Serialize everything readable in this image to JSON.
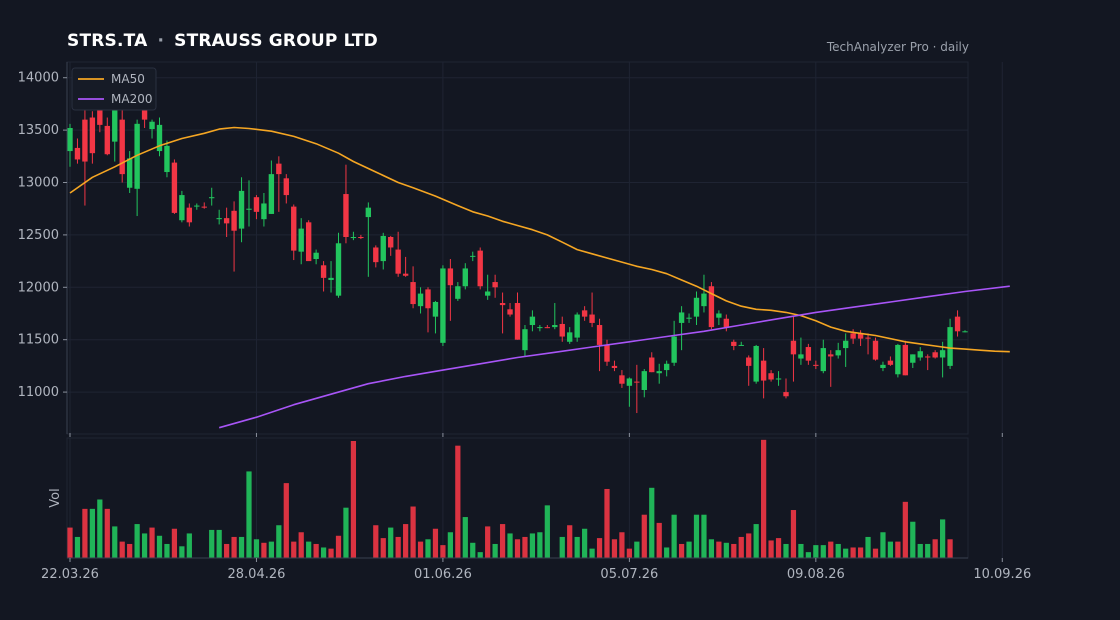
{
  "header": {
    "symbol": "STRS.TA",
    "separator": "·",
    "company": "STRAUSS GROUP LTD",
    "source": "TechAnalyzer Pro · daily"
  },
  "colors": {
    "background": "#131722",
    "up": "#22c55e",
    "down": "#f23645",
    "ma50": "#f5a623",
    "ma200": "#a855f7",
    "grid": "#1f2433",
    "axis": "#3a4050"
  },
  "chart_data": {
    "type": "candlestick",
    "ylim": [
      10600,
      14150
    ],
    "yticks": [
      11000,
      11500,
      12000,
      12500,
      13000,
      13500,
      14000
    ],
    "volume_label": "Vol",
    "x_tick_labels": [
      {
        "label": "22.03.26",
        "index": 0
      },
      {
        "label": "28.04.26",
        "index": 25
      },
      {
        "label": "01.06.26",
        "index": 50
      },
      {
        "label": "05.07.26",
        "index": 75
      },
      {
        "label": "09.08.26",
        "index": 100
      },
      {
        "label": "10.09.26",
        "index": 125
      }
    ],
    "legend": [
      {
        "name": "MA50",
        "color": "#f5a623"
      },
      {
        "name": "MA200",
        "color": "#a855f7"
      }
    ],
    "ohlc": [
      [
        13300,
        13560,
        13150,
        13520
      ],
      [
        13330,
        13420,
        13180,
        13220
      ],
      [
        13600,
        13700,
        12780,
        13200
      ],
      [
        13620,
        13680,
        13180,
        13280
      ],
      [
        13700,
        13720,
        13480,
        13550
      ],
      [
        13540,
        13620,
        13260,
        13270
      ],
      [
        13390,
        13700,
        13200,
        13690
      ],
      [
        13600,
        13700,
        13000,
        13080
      ],
      [
        12950,
        13300,
        12900,
        13230
      ],
      [
        12940,
        13600,
        12680,
        13560
      ],
      [
        13690,
        13850,
        13520,
        13600
      ],
      [
        13510,
        13600,
        13420,
        13580
      ],
      [
        13300,
        13620,
        13250,
        13550
      ],
      [
        13100,
        13400,
        13050,
        13350
      ],
      [
        13190,
        13220,
        12700,
        12710
      ],
      [
        12640,
        12920,
        12620,
        12880
      ],
      [
        12760,
        12800,
        12580,
        12620
      ],
      [
        12770,
        12800,
        12740,
        12780
      ],
      [
        12770,
        12810,
        12750,
        12760
      ],
      [
        12850,
        12950,
        12780,
        12860
      ],
      [
        12650,
        12740,
        12600,
        12660
      ],
      [
        12660,
        12760,
        12480,
        12610
      ],
      [
        12730,
        12820,
        12150,
        12540
      ],
      [
        12560,
        13050,
        12430,
        12920
      ],
      [
        12740,
        13020,
        12580,
        12750
      ],
      [
        12860,
        12880,
        12650,
        12720
      ],
      [
        12650,
        12900,
        12580,
        12800
      ],
      [
        12700,
        13210,
        12700,
        13080
      ],
      [
        13180,
        13250,
        12720,
        13080
      ],
      [
        13040,
        13080,
        12800,
        12880
      ],
      [
        12770,
        12790,
        12260,
        12350
      ],
      [
        12340,
        12660,
        12220,
        12560
      ],
      [
        12620,
        12640,
        12270,
        12250
      ],
      [
        12270,
        12360,
        12220,
        12330
      ],
      [
        12210,
        12250,
        11960,
        12090
      ],
      [
        12070,
        12250,
        11950,
        12090
      ],
      [
        11920,
        12520,
        11900,
        12420
      ],
      [
        12890,
        13170,
        12420,
        12480
      ],
      [
        12470,
        12530,
        12450,
        12480
      ],
      [
        12480,
        12500,
        12460,
        12470
      ],
      [
        12670,
        12810,
        12100,
        12760
      ],
      [
        12380,
        12400,
        12190,
        12240
      ],
      [
        12250,
        12520,
        12170,
        12490
      ],
      [
        12480,
        12490,
        12300,
        12380
      ],
      [
        12360,
        12530,
        12100,
        12130
      ],
      [
        12130,
        12290,
        12100,
        12110
      ],
      [
        12050,
        12200,
        11800,
        11840
      ],
      [
        11820,
        12000,
        11750,
        11940
      ],
      [
        11980,
        12000,
        11570,
        11800
      ],
      [
        11720,
        11870,
        11560,
        11860
      ],
      [
        11470,
        12210,
        11440,
        12180
      ],
      [
        12180,
        12270,
        11680,
        12020
      ],
      [
        11890,
        12050,
        11870,
        12010
      ],
      [
        12010,
        12230,
        11980,
        12180
      ],
      [
        12300,
        12340,
        12250,
        12300
      ],
      [
        12350,
        12380,
        11980,
        12010
      ],
      [
        11920,
        12120,
        11880,
        11960
      ],
      [
        12050,
        12120,
        11900,
        12000
      ],
      [
        11850,
        11950,
        11560,
        11830
      ],
      [
        11790,
        11850,
        11720,
        11740
      ],
      [
        11850,
        11950,
        11500,
        11500
      ],
      [
        11400,
        11640,
        11340,
        11600
      ],
      [
        11640,
        11780,
        11580,
        11720
      ],
      [
        11620,
        11640,
        11580,
        11620
      ],
      [
        11620,
        11640,
        11610,
        11610
      ],
      [
        11620,
        11850,
        11600,
        11640
      ],
      [
        11650,
        11720,
        11480,
        11530
      ],
      [
        11480,
        11620,
        11460,
        11570
      ],
      [
        11520,
        11760,
        11480,
        11740
      ],
      [
        11780,
        11820,
        11680,
        11720
      ],
      [
        11740,
        11950,
        11620,
        11660
      ],
      [
        11640,
        11700,
        11200,
        11450
      ],
      [
        11450,
        11500,
        11250,
        11290
      ],
      [
        11250,
        11300,
        11200,
        11230
      ],
      [
        11160,
        11210,
        11040,
        11080
      ],
      [
        11060,
        11140,
        10860,
        11130
      ],
      [
        11100,
        11260,
        10800,
        11090
      ],
      [
        11020,
        11220,
        10950,
        11200
      ],
      [
        11330,
        11380,
        11190,
        11190
      ],
      [
        11180,
        11270,
        11080,
        11200
      ],
      [
        11210,
        11300,
        11150,
        11270
      ],
      [
        11280,
        11680,
        11250,
        11530
      ],
      [
        11660,
        11820,
        11400,
        11760
      ],
      [
        11700,
        11750,
        11660,
        11710
      ],
      [
        11720,
        11960,
        11640,
        11900
      ],
      [
        11820,
        12120,
        11760,
        11940
      ],
      [
        12010,
        12050,
        11600,
        11620
      ],
      [
        11710,
        11780,
        11640,
        11750
      ],
      [
        11700,
        11740,
        11580,
        11620
      ],
      [
        11480,
        11500,
        11400,
        11440
      ],
      [
        11450,
        11480,
        11440,
        11450
      ],
      [
        11330,
        11350,
        11060,
        11250
      ],
      [
        11100,
        11450,
        11080,
        11440
      ],
      [
        11300,
        11420,
        10940,
        11110
      ],
      [
        11180,
        11210,
        11100,
        11120
      ],
      [
        11120,
        11200,
        11060,
        11130
      ],
      [
        11000,
        11130,
        10940,
        10960
      ],
      [
        11490,
        11720,
        11100,
        11360
      ],
      [
        11320,
        11520,
        11260,
        11360
      ],
      [
        11430,
        11460,
        11260,
        11300
      ],
      [
        11260,
        11300,
        11220,
        11250
      ],
      [
        11200,
        11500,
        11180,
        11420
      ],
      [
        11360,
        11400,
        11050,
        11340
      ],
      [
        11350,
        11470,
        11320,
        11400
      ],
      [
        11420,
        11560,
        11240,
        11490
      ],
      [
        11560,
        11600,
        11460,
        11510
      ],
      [
        11560,
        11590,
        11440,
        11510
      ],
      [
        11520,
        11560,
        11360,
        11510
      ],
      [
        11490,
        11520,
        11300,
        11310
      ],
      [
        11230,
        11290,
        11200,
        11260
      ],
      [
        11300,
        11340,
        11250,
        11260
      ],
      [
        11170,
        11460,
        11140,
        11450
      ],
      [
        11450,
        11490,
        11160,
        11160
      ],
      [
        11280,
        11360,
        11230,
        11360
      ],
      [
        11330,
        11430,
        11300,
        11390
      ],
      [
        11340,
        11360,
        11210,
        11330
      ],
      [
        11380,
        11400,
        11320,
        11330
      ],
      [
        11330,
        11480,
        11140,
        11400
      ],
      [
        11250,
        11700,
        11220,
        11620
      ],
      [
        11720,
        11780,
        11530,
        11580
      ],
      [
        11580,
        11590,
        11570,
        11580
      ]
    ],
    "volume": [
      [
        0.26,
        "down"
      ],
      [
        0.18,
        "up"
      ],
      [
        0.42,
        "down"
      ],
      [
        0.42,
        "up"
      ],
      [
        0.5,
        "up"
      ],
      [
        0.42,
        "down"
      ],
      [
        0.27,
        "up"
      ],
      [
        0.14,
        "down"
      ],
      [
        0.12,
        "down"
      ],
      [
        0.29,
        "up"
      ],
      [
        0.21,
        "up"
      ],
      [
        0.26,
        "down"
      ],
      [
        0.19,
        "up"
      ],
      [
        0.12,
        "up"
      ],
      [
        0.25,
        "down"
      ],
      [
        0.1,
        "up"
      ],
      [
        0.21,
        "up"
      ],
      [
        0.0,
        "up"
      ],
      [
        0.0,
        "up"
      ],
      [
        0.24,
        "up"
      ],
      [
        0.24,
        "up"
      ],
      [
        0.12,
        "down"
      ],
      [
        0.18,
        "down"
      ],
      [
        0.18,
        "up"
      ],
      [
        0.74,
        "up"
      ],
      [
        0.16,
        "up"
      ],
      [
        0.13,
        "down"
      ],
      [
        0.14,
        "up"
      ],
      [
        0.28,
        "up"
      ],
      [
        0.64,
        "down"
      ],
      [
        0.14,
        "down"
      ],
      [
        0.22,
        "down"
      ],
      [
        0.14,
        "up"
      ],
      [
        0.12,
        "down"
      ],
      [
        0.09,
        "up"
      ],
      [
        0.08,
        "down"
      ],
      [
        0.19,
        "down"
      ],
      [
        0.43,
        "up"
      ],
      [
        1.0,
        "down"
      ],
      [
        0.0,
        "up"
      ],
      [
        0.0,
        "up"
      ],
      [
        0.28,
        "down"
      ],
      [
        0.17,
        "down"
      ],
      [
        0.26,
        "up"
      ],
      [
        0.18,
        "down"
      ],
      [
        0.29,
        "down"
      ],
      [
        0.44,
        "down"
      ],
      [
        0.14,
        "down"
      ],
      [
        0.16,
        "up"
      ],
      [
        0.25,
        "down"
      ],
      [
        0.11,
        "down"
      ],
      [
        0.22,
        "up"
      ],
      [
        0.96,
        "down"
      ],
      [
        0.35,
        "up"
      ],
      [
        0.13,
        "up"
      ],
      [
        0.05,
        "up"
      ],
      [
        0.27,
        "down"
      ],
      [
        0.12,
        "up"
      ],
      [
        0.29,
        "down"
      ],
      [
        0.21,
        "up"
      ],
      [
        0.16,
        "down"
      ],
      [
        0.18,
        "down"
      ],
      [
        0.21,
        "up"
      ],
      [
        0.22,
        "up"
      ],
      [
        0.45,
        "up"
      ],
      [
        0.0,
        "up"
      ],
      [
        0.18,
        "up"
      ],
      [
        0.28,
        "down"
      ],
      [
        0.18,
        "up"
      ],
      [
        0.25,
        "up"
      ],
      [
        0.08,
        "up"
      ],
      [
        0.17,
        "down"
      ],
      [
        0.59,
        "down"
      ],
      [
        0.16,
        "down"
      ],
      [
        0.22,
        "down"
      ],
      [
        0.08,
        "down"
      ],
      [
        0.14,
        "up"
      ],
      [
        0.37,
        "down"
      ],
      [
        0.6,
        "up"
      ],
      [
        0.3,
        "down"
      ],
      [
        0.09,
        "up"
      ],
      [
        0.37,
        "up"
      ],
      [
        0.12,
        "down"
      ],
      [
        0.14,
        "up"
      ],
      [
        0.37,
        "up"
      ],
      [
        0.37,
        "up"
      ],
      [
        0.16,
        "up"
      ],
      [
        0.14,
        "down"
      ],
      [
        0.13,
        "up"
      ],
      [
        0.12,
        "down"
      ],
      [
        0.18,
        "down"
      ],
      [
        0.21,
        "down"
      ],
      [
        0.29,
        "up"
      ],
      [
        1.01,
        "down"
      ],
      [
        0.15,
        "down"
      ],
      [
        0.17,
        "down"
      ],
      [
        0.12,
        "up"
      ],
      [
        0.41,
        "down"
      ],
      [
        0.12,
        "up"
      ],
      [
        0.05,
        "up"
      ],
      [
        0.11,
        "up"
      ],
      [
        0.11,
        "up"
      ],
      [
        0.14,
        "down"
      ],
      [
        0.12,
        "up"
      ],
      [
        0.08,
        "up"
      ],
      [
        0.09,
        "down"
      ],
      [
        0.09,
        "down"
      ],
      [
        0.18,
        "up"
      ],
      [
        0.08,
        "down"
      ],
      [
        0.22,
        "up"
      ],
      [
        0.14,
        "up"
      ],
      [
        0.14,
        "down"
      ],
      [
        0.48,
        "down"
      ],
      [
        0.31,
        "up"
      ],
      [
        0.12,
        "up"
      ],
      [
        0.12,
        "up"
      ],
      [
        0.16,
        "down"
      ],
      [
        0.33,
        "up"
      ],
      [
        0.16,
        "down"
      ],
      [
        0.0,
        "up"
      ]
    ],
    "ma50": [
      [
        0,
        12900
      ],
      [
        3,
        13050
      ],
      [
        6,
        13150
      ],
      [
        9,
        13260
      ],
      [
        12,
        13350
      ],
      [
        15,
        13420
      ],
      [
        18,
        13470
      ],
      [
        20,
        13510
      ],
      [
        22,
        13525
      ],
      [
        24,
        13515
      ],
      [
        27,
        13490
      ],
      [
        30,
        13440
      ],
      [
        33,
        13370
      ],
      [
        36,
        13280
      ],
      [
        38,
        13200
      ],
      [
        41,
        13100
      ],
      [
        44,
        13000
      ],
      [
        46,
        12950
      ],
      [
        49,
        12870
      ],
      [
        52,
        12780
      ],
      [
        54,
        12720
      ],
      [
        56,
        12680
      ],
      [
        58,
        12630
      ],
      [
        60,
        12590
      ],
      [
        62,
        12550
      ],
      [
        64,
        12500
      ],
      [
        66,
        12430
      ],
      [
        68,
        12360
      ],
      [
        70,
        12320
      ],
      [
        72,
        12280
      ],
      [
        74,
        12240
      ],
      [
        76,
        12200
      ],
      [
        78,
        12170
      ],
      [
        80,
        12130
      ],
      [
        82,
        12070
      ],
      [
        84,
        12010
      ],
      [
        86,
        11940
      ],
      [
        88,
        11870
      ],
      [
        90,
        11820
      ],
      [
        92,
        11790
      ],
      [
        94,
        11780
      ],
      [
        96,
        11760
      ],
      [
        98,
        11730
      ],
      [
        100,
        11680
      ],
      [
        102,
        11620
      ],
      [
        104,
        11580
      ],
      [
        106,
        11560
      ],
      [
        108,
        11540
      ],
      [
        110,
        11510
      ],
      [
        112,
        11480
      ],
      [
        114,
        11460
      ],
      [
        116,
        11440
      ],
      [
        118,
        11420
      ],
      [
        120,
        11410
      ],
      [
        122,
        11400
      ],
      [
        124,
        11390
      ],
      [
        126,
        11385
      ]
    ],
    "ma200": [
      [
        20,
        10660
      ],
      [
        25,
        10760
      ],
      [
        30,
        10880
      ],
      [
        35,
        10980
      ],
      [
        40,
        11080
      ],
      [
        45,
        11150
      ],
      [
        50,
        11210
      ],
      [
        55,
        11270
      ],
      [
        60,
        11330
      ],
      [
        65,
        11380
      ],
      [
        70,
        11430
      ],
      [
        75,
        11480
      ],
      [
        80,
        11530
      ],
      [
        85,
        11580
      ],
      [
        90,
        11640
      ],
      [
        95,
        11700
      ],
      [
        100,
        11760
      ],
      [
        105,
        11810
      ],
      [
        110,
        11860
      ],
      [
        115,
        11910
      ],
      [
        120,
        11960
      ],
      [
        126,
        12010
      ]
    ]
  }
}
